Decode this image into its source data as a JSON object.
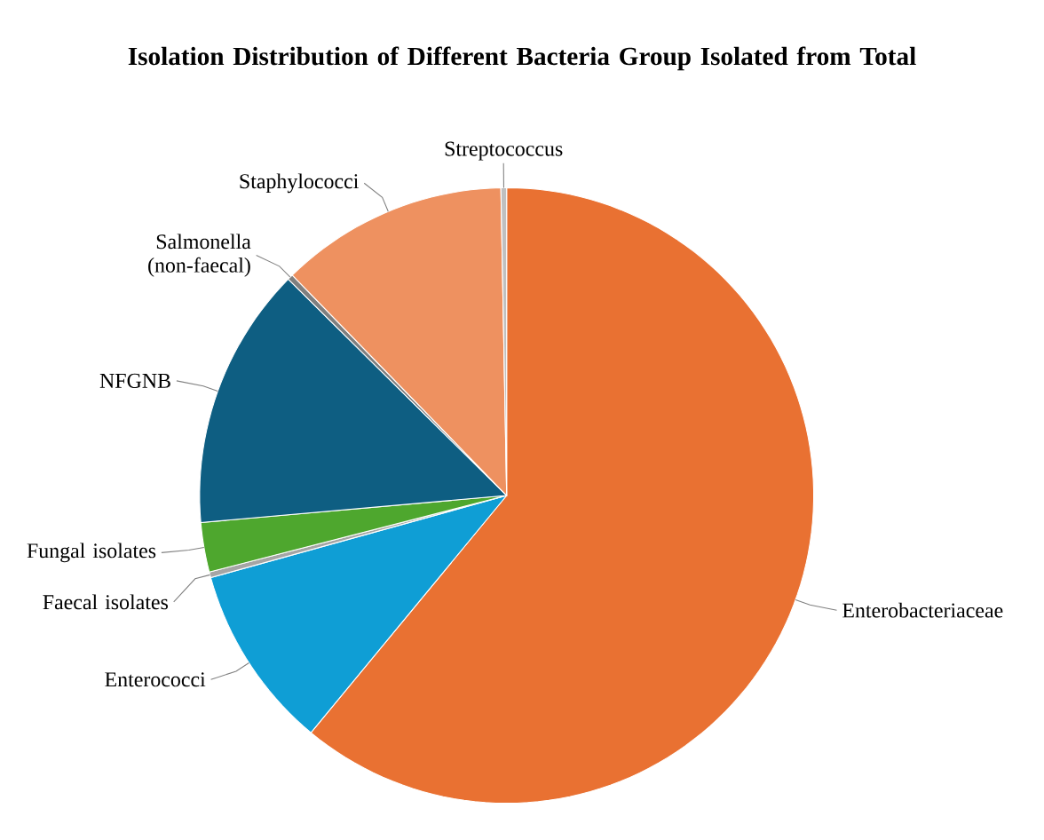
{
  "chart_data": {
    "type": "pie",
    "title": "Isolation Distribution of Different Bacteria Group Isolated from Total",
    "categories": [
      "Enterobacteriaceae",
      "Enterococci",
      "Faecal isolates",
      "Fungal isolates",
      "NFGNB",
      "Salmonella (non-faecal)",
      "Staphylococci",
      "Streptococcus"
    ],
    "values": [
      61.0,
      9.7,
      0.3,
      2.6,
      13.8,
      0.3,
      12.0,
      0.3
    ],
    "colors": [
      "#e97132",
      "#0f9ed5",
      "#a5a5a5",
      "#4ea72e",
      "#0e5e82",
      "#7f7f7f",
      "#ee9160",
      "#c0c0c0"
    ]
  }
}
